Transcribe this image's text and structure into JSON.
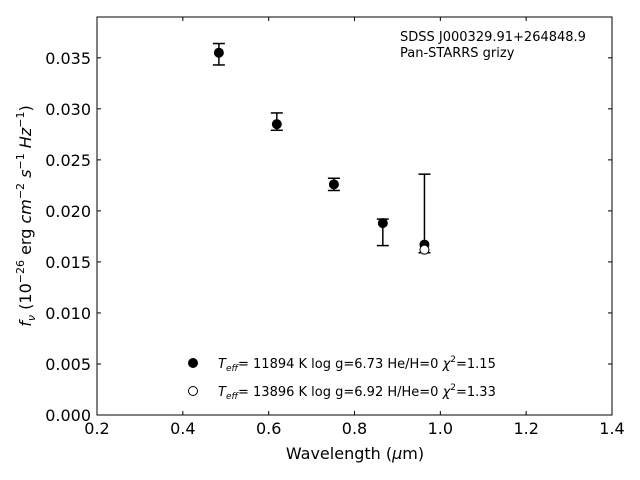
{
  "chart_data": {
    "type": "scatter",
    "title": "",
    "xlabel": "Wavelength (μm)",
    "ylabel": "f_ν (10^-26 erg cm^-2 s^-1 Hz^-1)",
    "xlim": [
      0.2,
      1.4
    ],
    "ylim": [
      0.0,
      0.039
    ],
    "x_ticks": [
      0.2,
      0.4,
      0.6,
      0.8,
      1.0,
      1.2,
      1.4
    ],
    "x_tick_labels": [
      "0.2",
      "0.4",
      "0.6",
      "0.8",
      "1.0",
      "1.2",
      "1.4"
    ],
    "y_ticks": [
      0.0,
      0.005,
      0.01,
      0.015,
      0.02,
      0.025,
      0.03,
      0.035
    ],
    "y_tick_labels": [
      "0.000",
      "0.005",
      "0.010",
      "0.015",
      "0.020",
      "0.025",
      "0.030",
      "0.035"
    ],
    "grid": false,
    "annotations": [
      "SDSS J000329.91+264848.9",
      "Pan-STARRS grizy"
    ],
    "observed": {
      "x": [
        0.484,
        0.619,
        0.752,
        0.866,
        0.963
      ],
      "y": [
        0.0355,
        0.0285,
        0.0226,
        0.0188,
        0.0167
      ],
      "yerr_low": [
        0.0012,
        0.0006,
        0.0006,
        0.0022,
        0.0008
      ],
      "yerr_high": [
        0.0009,
        0.0011,
        0.0006,
        0.0004,
        0.0069
      ]
    },
    "series": [
      {
        "marker": "filled-circle",
        "label_parts": [
          "T",
          "eff",
          "= 11894 K  log g=6.73  He/H=0  ",
          "χ",
          "2",
          "=1.15"
        ],
        "x": [
          0.484,
          0.619,
          0.752,
          0.866,
          0.963
        ],
        "y": [
          0.0355,
          0.0285,
          0.0226,
          0.0188,
          0.0167
        ]
      },
      {
        "marker": "open-circle",
        "label_parts": [
          "T",
          "eff",
          "= 13896 K  log g=6.92  H/He=0  ",
          "χ",
          "2",
          "=1.33"
        ],
        "x": [
          0.963
        ],
        "y": [
          0.0162
        ]
      }
    ],
    "legend_location": "lower-center"
  }
}
